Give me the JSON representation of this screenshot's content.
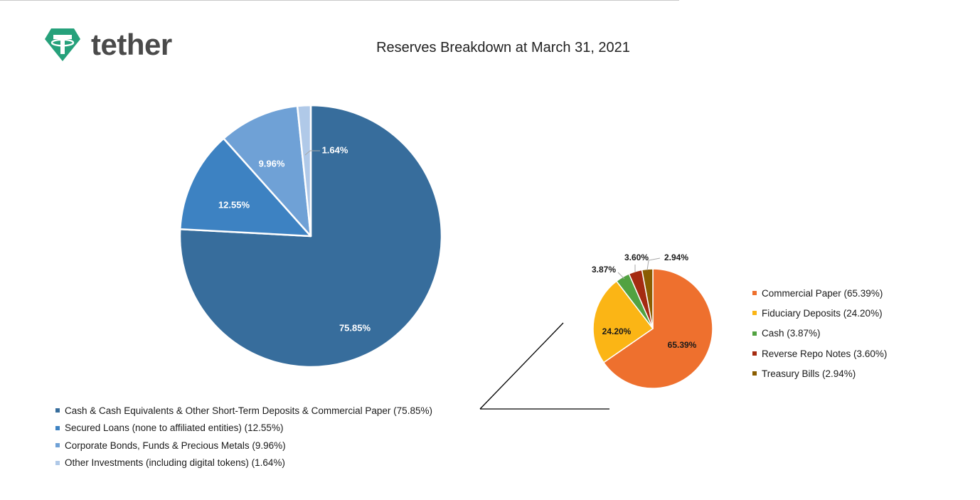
{
  "logo": {
    "text": "tether",
    "icon": "tether-logo-icon",
    "color": "#26a17b"
  },
  "chart_data": [
    {
      "type": "pie",
      "title": "Reserves Breakdown at March 31, 2021",
      "legend_position": "bottom-left",
      "slices": [
        {
          "label": "Cash & Cash Equivalents & Other Short-Term Deposits & Commercial Paper (75.85%)",
          "value": 75.85,
          "data_label": "75.85%",
          "color": "#376d9c"
        },
        {
          "label": "Secured Loans (none to affiliated entities) (12.55%)",
          "value": 12.55,
          "data_label": "12.55%",
          "color": "#3d82c2"
        },
        {
          "label": "Corporate Bonds, Funds & Precious Metals (9.96%)",
          "value": 9.96,
          "data_label": "9.96%",
          "color": "#6fa1d6"
        },
        {
          "label": "Other Investments (including digital tokens) (1.64%)",
          "value": 1.64,
          "data_label": "1.64%",
          "color": "#b0c9e8"
        }
      ]
    },
    {
      "type": "pie",
      "legend_position": "right",
      "slices": [
        {
          "label": "Commercial Paper (65.39%)",
          "value": 65.39,
          "data_label": "65.39%",
          "color": "#ee702e"
        },
        {
          "label": "Fiduciary Deposits (24.20%)",
          "value": 24.2,
          "data_label": "24.20%",
          "color": "#fbb515"
        },
        {
          "label": "Cash (3.87%)",
          "value": 3.87,
          "data_label": "3.87%",
          "color": "#52a241"
        },
        {
          "label": "Reverse Repo Notes (3.60%)",
          "value": 3.6,
          "data_label": "3.60%",
          "color": "#a52b11"
        },
        {
          "label": "Treasury Bills (2.94%)",
          "value": 2.94,
          "data_label": "2.94%",
          "color": "#8a5d00"
        }
      ]
    }
  ]
}
